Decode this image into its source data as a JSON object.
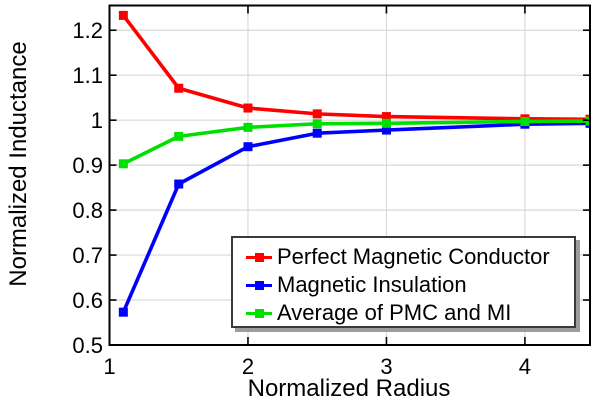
{
  "chart_data": {
    "type": "line",
    "title": "",
    "xlabel": "Normalized Radius",
    "ylabel": "Normalized Inductance",
    "x": [
      1.1,
      1.5,
      2.0,
      2.5,
      3.0,
      4.0,
      4.47
    ],
    "series": [
      {
        "name": "Perfect Magnetic Conductor",
        "color": "#ff0000",
        "values": [
          1.233,
          1.071,
          1.027,
          1.014,
          1.008,
          1.003,
          1.002
        ]
      },
      {
        "name": "Magnetic Insulation",
        "color": "#0000ff",
        "values": [
          0.573,
          0.858,
          0.941,
          0.971,
          0.978,
          0.991,
          0.993
        ]
      },
      {
        "name": "Average of PMC and MI",
        "color": "#00e000",
        "values": [
          0.903,
          0.964,
          0.984,
          0.992,
          0.993,
          0.997,
          0.998
        ]
      }
    ],
    "xlim": [
      1,
      4.47
    ],
    "ylim": [
      0.5,
      1.255
    ],
    "xticks": [
      1,
      2,
      3,
      4
    ],
    "xtick_labels": [
      "1",
      "2",
      "3",
      "4"
    ],
    "yticks": [
      0.5,
      0.6,
      0.7,
      0.8,
      0.9,
      1.0,
      1.1,
      1.2
    ],
    "ytick_labels": [
      "0.5",
      "0.6",
      "0.7",
      "0.8",
      "0.9",
      "1",
      "1.1",
      "1.2"
    ],
    "grid": true,
    "marker": "square",
    "legend_position": "lower-right"
  },
  "style": {
    "background": "#ffffff",
    "grid_color": "#d9d9d9",
    "frame_color": "#000000",
    "text_color": "#000000",
    "legend_border": "#3a3a3a",
    "legend_shadow": "#9c9c9c"
  }
}
